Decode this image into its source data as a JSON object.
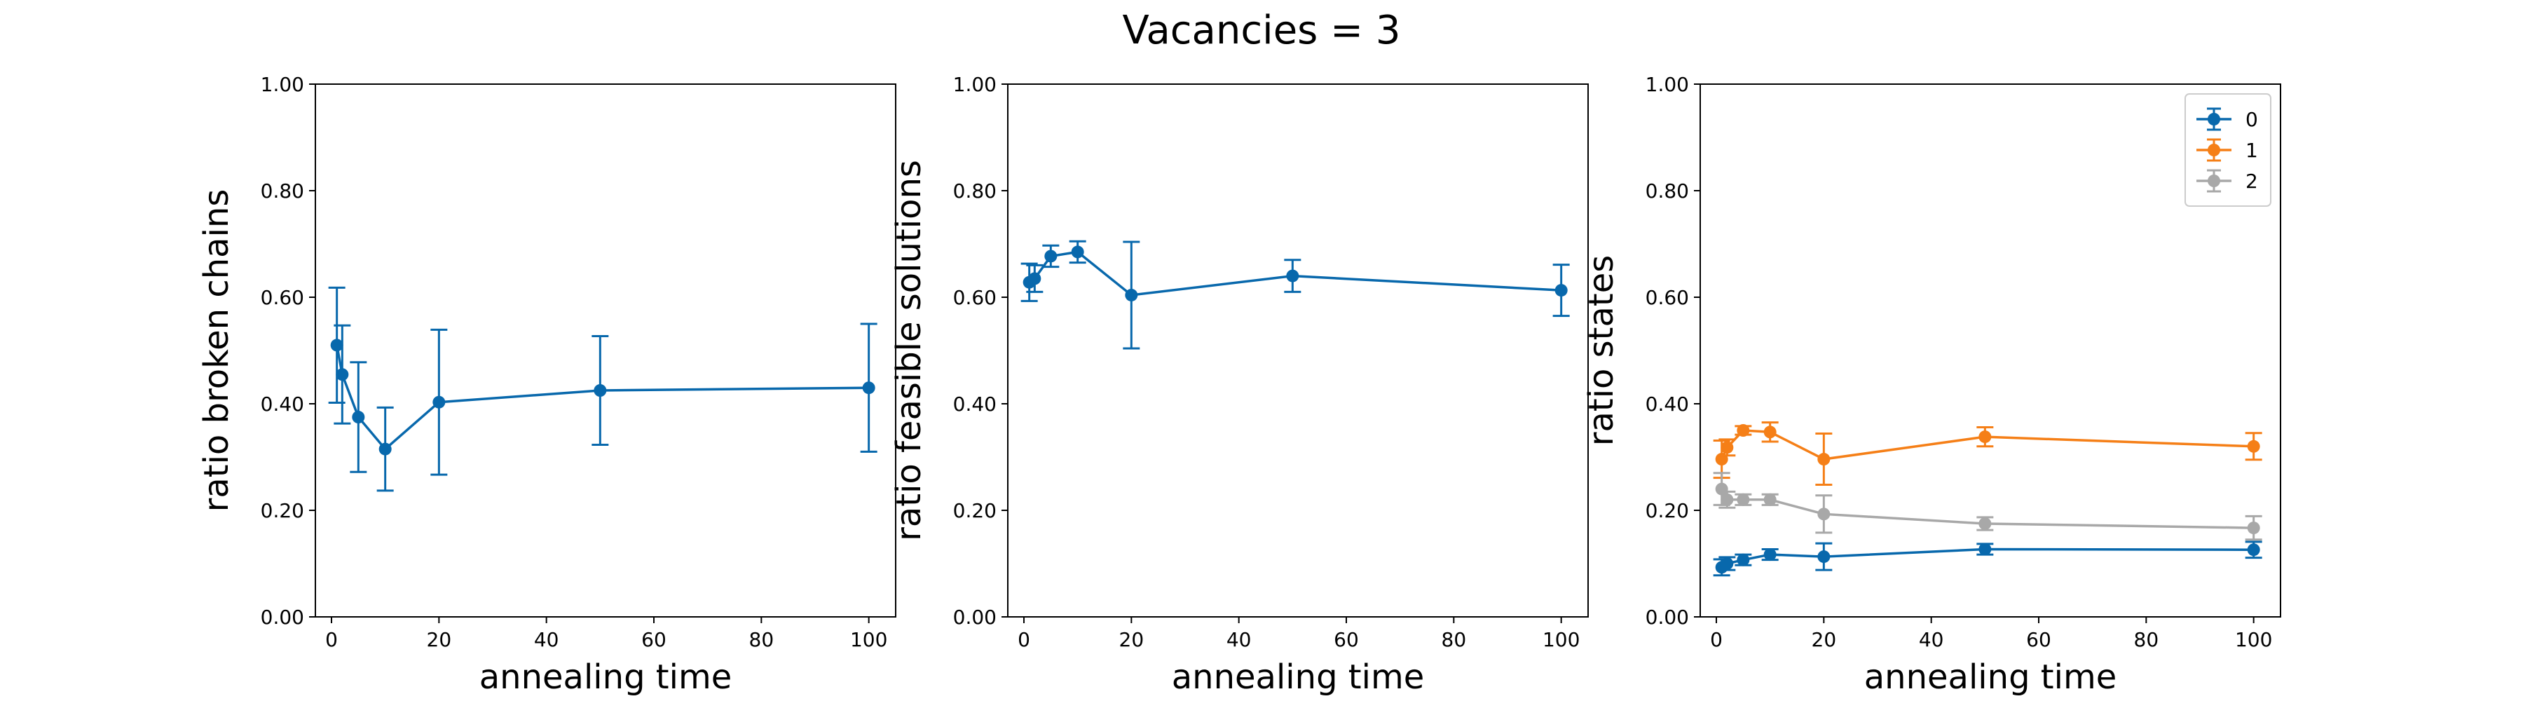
{
  "figure_title": "Vacancies = 3",
  "chart_data": [
    {
      "type": "line",
      "xlabel": "annealing time",
      "ylabel": "ratio broken chains",
      "xlim": [
        -3,
        105
      ],
      "ylim": [
        0,
        1
      ],
      "xticks": [
        0,
        20,
        40,
        60,
        80,
        100
      ],
      "yticks": [
        0.0,
        0.2,
        0.4,
        0.6,
        0.8,
        1.0
      ],
      "ytick_labels": [
        "0.00",
        "0.20",
        "0.40",
        "0.60",
        "0.80",
        "1.00"
      ],
      "grid": false,
      "legend": null,
      "series": [
        {
          "color": "#0868ac",
          "x": [
            1,
            2,
            5,
            10,
            20,
            50,
            100
          ],
          "y": [
            0.51,
            0.455,
            0.375,
            0.315,
            0.403,
            0.425,
            0.43
          ],
          "yerr": [
            0.108,
            0.092,
            0.103,
            0.078,
            0.136,
            0.102,
            0.12
          ]
        }
      ]
    },
    {
      "type": "line",
      "xlabel": "annealing time",
      "ylabel": "ratio feasible solutions",
      "xlim": [
        -3,
        105
      ],
      "ylim": [
        0,
        1
      ],
      "xticks": [
        0,
        20,
        40,
        60,
        80,
        100
      ],
      "yticks": [
        0.0,
        0.2,
        0.4,
        0.6,
        0.8,
        1.0
      ],
      "ytick_labels": [
        "0.00",
        "0.20",
        "0.40",
        "0.60",
        "0.80",
        "1.00"
      ],
      "grid": false,
      "legend": null,
      "series": [
        {
          "color": "#0868ac",
          "x": [
            1,
            2,
            5,
            10,
            20,
            50,
            100
          ],
          "y": [
            0.628,
            0.635,
            0.677,
            0.685,
            0.604,
            0.64,
            0.613
          ],
          "yerr": [
            0.035,
            0.025,
            0.02,
            0.02,
            0.1,
            0.03,
            0.048
          ]
        }
      ]
    },
    {
      "type": "line",
      "xlabel": "annealing time",
      "ylabel": "ratio states",
      "xlim": [
        -3,
        105
      ],
      "ylim": [
        0,
        1
      ],
      "xticks": [
        0,
        20,
        40,
        60,
        80,
        100
      ],
      "yticks": [
        0.0,
        0.2,
        0.4,
        0.6,
        0.8,
        1.0
      ],
      "ytick_labels": [
        "0.00",
        "0.20",
        "0.40",
        "0.60",
        "0.80",
        "1.00"
      ],
      "grid": false,
      "legend": "top-right",
      "series": [
        {
          "name": "0",
          "color": "#0868ac",
          "x": [
            1,
            2,
            5,
            10,
            20,
            50,
            100
          ],
          "y": [
            0.093,
            0.1,
            0.107,
            0.117,
            0.113,
            0.127,
            0.126
          ],
          "yerr": [
            0.015,
            0.012,
            0.01,
            0.01,
            0.025,
            0.01,
            0.015
          ]
        },
        {
          "name": "1",
          "color": "#f57f17",
          "x": [
            1,
            2,
            5,
            10,
            20,
            50,
            100
          ],
          "y": [
            0.296,
            0.318,
            0.35,
            0.347,
            0.296,
            0.338,
            0.32
          ],
          "yerr": [
            0.035,
            0.015,
            0.008,
            0.018,
            0.048,
            0.018,
            0.025
          ]
        },
        {
          "name": "2",
          "color": "#a8a8a8",
          "x": [
            1,
            2,
            5,
            10,
            20,
            50,
            100
          ],
          "y": [
            0.24,
            0.22,
            0.22,
            0.22,
            0.193,
            0.175,
            0.167
          ],
          "yerr": [
            0.03,
            0.015,
            0.01,
            0.01,
            0.035,
            0.012,
            0.022
          ]
        }
      ]
    }
  ]
}
